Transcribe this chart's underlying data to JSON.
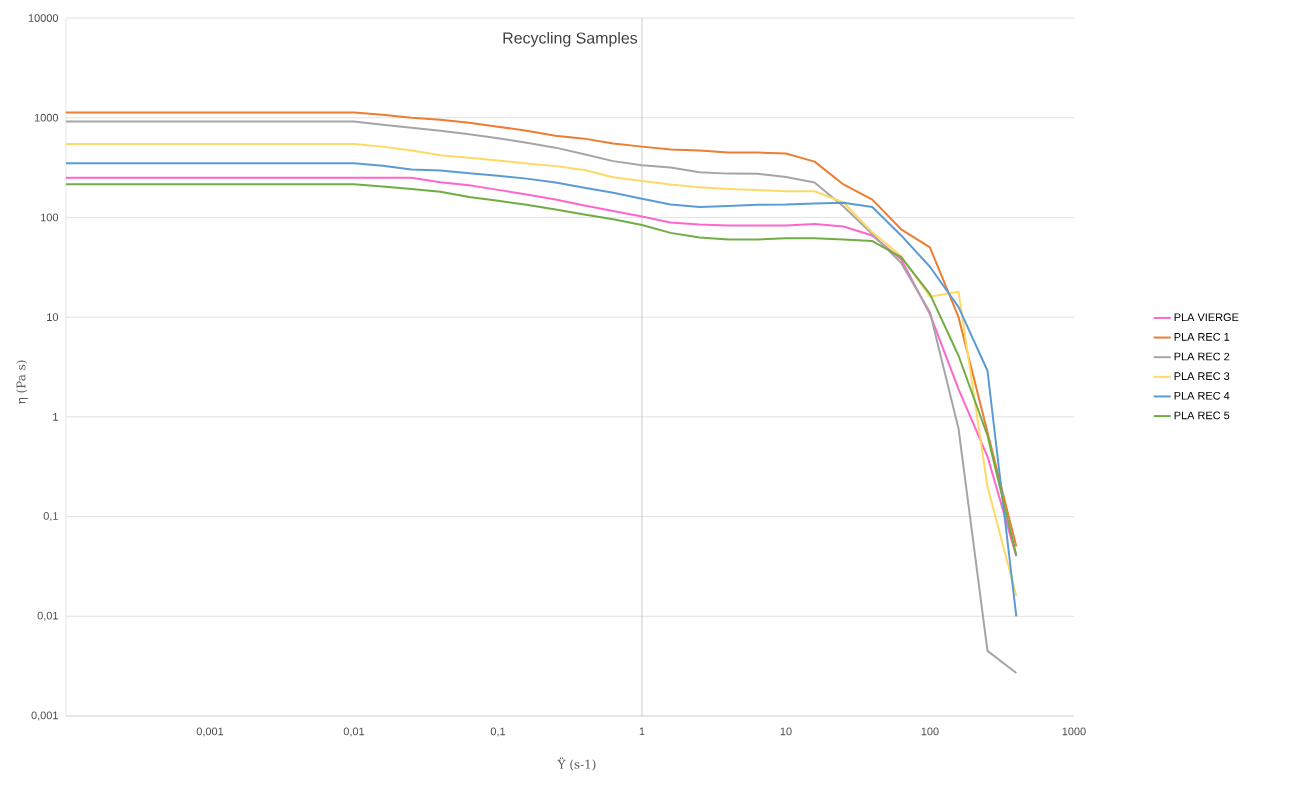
{
  "chart_data": {
    "type": "line",
    "title": "Recycling Samples",
    "xlabel": "Ÿ (s-1)",
    "ylabel": "η (Pa s)",
    "log": "xy",
    "grid": "y",
    "legend": "right",
    "marker": "none",
    "line_style": "solid",
    "xlim": [
      0.0001,
      1000
    ],
    "ylim": [
      0.001,
      10000
    ],
    "xticks": [
      {
        "value": 0.001,
        "label": "0,001"
      },
      {
        "value": 0.01,
        "label": "0,01"
      },
      {
        "value": 0.1,
        "label": "0,1"
      },
      1,
      10,
      100,
      1000
    ],
    "yticks": [
      {
        "value": 0.001,
        "label": "0,001"
      },
      {
        "value": 0.01,
        "label": "0,01"
      },
      {
        "value": 0.1,
        "label": "0,1"
      },
      1,
      10,
      100,
      1000,
      10000
    ],
    "ref_lines": [
      {
        "axis": "x",
        "value": 1,
        "color": "#bfbfbf"
      }
    ],
    "x": [
      0.0001,
      0.01,
      0.0158,
      0.0251,
      0.0398,
      0.0631,
      0.1,
      0.158,
      0.251,
      0.398,
      0.631,
      1,
      1.58,
      2.51,
      3.98,
      6.31,
      10,
      15.8,
      25.1,
      39.8,
      63.1,
      100,
      158,
      251,
      398
    ],
    "series": [
      {
        "name": "PLA VIERGE",
        "color": "#ff66cc",
        "values": [
          250,
          250,
          250,
          250,
          225,
          210,
          189,
          170,
          151,
          132,
          116,
          102,
          89,
          85,
          83,
          83,
          83,
          86,
          81,
          66,
          38,
          10.7,
          1.9,
          0.4,
          0.04
        ]
      },
      {
        "name": "PLA REC 1",
        "color": "#ed7d31",
        "values": [
          1130,
          1130,
          1072,
          1000,
          955,
          891,
          813,
          741,
          661,
          617,
          550,
          513,
          479,
          468,
          447,
          447,
          437,
          363,
          214,
          151,
          76,
          50,
          10,
          0.7,
          0.05
        ]
      },
      {
        "name": "PLA REC 2",
        "color": "#a5a5a5",
        "values": [
          915,
          915,
          851,
          794,
          741,
          682,
          624,
          562,
          501,
          430,
          367,
          333,
          316,
          284,
          275,
          274,
          255,
          224,
          129,
          68,
          35,
          11.2,
          0.76,
          0.0045,
          0.0027
        ]
      },
      {
        "name": "PLA REC 3",
        "color": "#ffd966",
        "values": [
          545,
          545,
          513,
          470,
          420,
          396,
          373,
          347,
          327,
          299,
          253,
          232,
          214,
          201,
          193,
          188,
          183,
          183,
          141,
          71,
          41,
          16,
          18,
          0.2,
          0.016
        ]
      },
      {
        "name": "PLA REC 4",
        "color": "#5b9bd5",
        "values": [
          350,
          350,
          330,
          302,
          295,
          277,
          262,
          245,
          224,
          198,
          177,
          154,
          135,
          127,
          130,
          134,
          135,
          138,
          140,
          127,
          66,
          32,
          12.6,
          2.9,
          0.01
        ]
      },
      {
        "name": "PLA REC 5",
        "color": "#70ad47",
        "values": [
          215,
          215,
          204,
          193,
          181,
          160,
          147,
          134,
          120,
          107,
          96,
          84,
          70,
          63,
          60,
          60,
          62,
          62,
          60,
          58,
          40,
          17,
          4.1,
          0.65,
          0.041
        ]
      }
    ]
  }
}
